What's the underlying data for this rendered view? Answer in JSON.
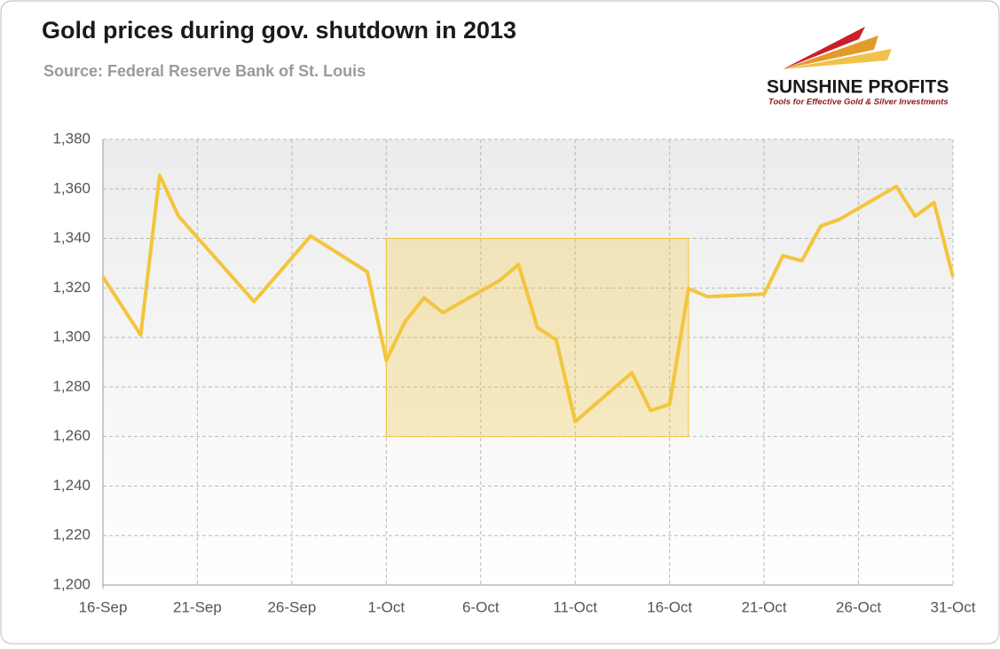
{
  "chart_data": {
    "type": "line",
    "title": "Gold prices during gov. shutdown in 2013",
    "subtitle": "Source: Federal Reserve Bank of St. Louis",
    "x": [
      "16-Sep",
      "18-Sep",
      "19-Sep",
      "20-Sep",
      "24-Sep",
      "27-Sep",
      "30-Sep",
      "1-Oct",
      "2-Oct",
      "3-Oct",
      "4-Oct",
      "7-Oct",
      "8-Oct",
      "9-Oct",
      "10-Oct",
      "11-Oct",
      "14-Oct",
      "15-Oct",
      "16-Oct",
      "17-Oct",
      "18-Oct",
      "21-Oct",
      "22-Oct",
      "23-Oct",
      "24-Oct",
      "25-Oct",
      "28-Oct",
      "29-Oct",
      "30-Oct",
      "31-Oct"
    ],
    "values": [
      1324.5,
      1301,
      1365.5,
      1349,
      1314.5,
      1341,
      1326.5,
      1290.75,
      1306.5,
      1316,
      1310,
      1323,
      1329.5,
      1304,
      1299,
      1266,
      1285.75,
      1270.5,
      1273,
      1319.75,
      1316.5,
      1317.5,
      1333,
      1331,
      1345,
      1347.75,
      1361,
      1349,
      1354.5,
      1324.5
    ],
    "color": "#f3c53b",
    "xlim": [
      "16-Sep",
      "31-Oct"
    ],
    "xticks": [
      "16-Sep",
      "21-Sep",
      "26-Sep",
      "1-Oct",
      "6-Oct",
      "11-Oct",
      "16-Oct",
      "21-Oct",
      "26-Oct",
      "31-Oct"
    ],
    "ylim": [
      1200,
      1380
    ],
    "yticks": [
      {
        "value": 1200,
        "label": "1,200"
      },
      {
        "value": 1220,
        "label": "1,220"
      },
      {
        "value": 1240,
        "label": "1,240"
      },
      {
        "value": 1260,
        "label": "1,260"
      },
      {
        "value": 1280,
        "label": "1,280"
      },
      {
        "value": 1300,
        "label": "1,300"
      },
      {
        "value": 1320,
        "label": "1,320"
      },
      {
        "value": 1340,
        "label": "1,340"
      },
      {
        "value": 1360,
        "label": "1,360"
      },
      {
        "value": 1380,
        "label": "1,380"
      }
    ],
    "grid": true,
    "highlight": {
      "x": [
        "1-Oct",
        "17-Oct"
      ],
      "y": [
        1260,
        1340
      ],
      "color": "#f3c53b"
    }
  },
  "logo": {
    "name": "SUNSHINE PROFITS",
    "tagline": "Tools for Effective Gold & Silver Investments"
  }
}
